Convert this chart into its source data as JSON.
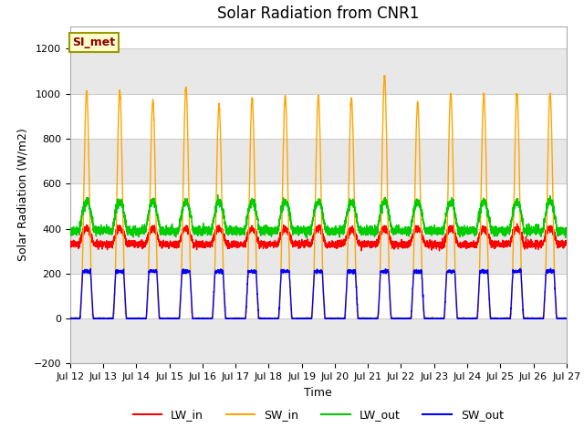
{
  "title": "Solar Radiation from CNR1",
  "ylabel": "Solar Radiation (W/m2)",
  "xlabel": "Time",
  "annotation": "SI_met",
  "ylim": [
    -200,
    1300
  ],
  "yticks": [
    -200,
    0,
    200,
    400,
    600,
    800,
    1000,
    1200
  ],
  "colors": {
    "LW_in": "#ff0000",
    "SW_in": "#ffa500",
    "LW_out": "#00cc00",
    "SW_out": "#0000ff"
  },
  "bg_color": "#ffffff",
  "plot_bg_color": "#ffffff",
  "grid_color": "#cccccc",
  "band_color": "#e8e8e8",
  "n_days": 15,
  "start_day": 12,
  "pts_per_day": 288,
  "LW_in_base": 330,
  "LW_in_amp": 60,
  "LW_out_base": 390,
  "LW_out_amp": 120,
  "SW_in_peak": 1000,
  "SW_out_peak": 210,
  "title_fontsize": 12,
  "label_fontsize": 9,
  "tick_fontsize": 8,
  "legend_fontsize": 9
}
